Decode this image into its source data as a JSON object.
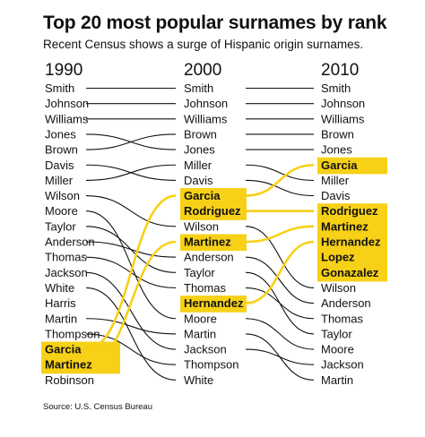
{
  "title": "Top 20 most popular surnames by rank",
  "subtitle": "Recent Census shows a surge of Hispanic origin surnames.",
  "source": "Source: U.S. Census Bureau",
  "colors": {
    "highlight": "#f7d117",
    "line": "#111111",
    "text": "#111111"
  },
  "chart_data": {
    "type": "bump",
    "years": [
      "1990",
      "2000",
      "2010"
    ],
    "rankings": {
      "1990": [
        "Smith",
        "Johnson",
        "Williams",
        "Jones",
        "Brown",
        "Davis",
        "Miller",
        "Wilson",
        "Moore",
        "Taylor",
        "Anderson",
        "Thomas",
        "Jackson",
        "White",
        "Harris",
        "Martin",
        "Thompson",
        "Garcia",
        "Martinez",
        "Robinson"
      ],
      "2000": [
        "Smith",
        "Johnson",
        "Williams",
        "Brown",
        "Jones",
        "Miller",
        "Davis",
        "Garcia",
        "Rodriguez",
        "Wilson",
        "Martinez",
        "Anderson",
        "Taylor",
        "Thomas",
        "Hernandez",
        "Moore",
        "Martin",
        "Jackson",
        "Thompson",
        "White"
      ],
      "2010": [
        "Smith",
        "Johnson",
        "Williams",
        "Brown",
        "Jones",
        "Garcia",
        "Miller",
        "Davis",
        "Rodriguez",
        "Martinez",
        "Hernandez",
        "Lopez",
        "Gonazalez",
        "Wilson",
        "Anderson",
        "Thomas",
        "Taylor",
        "Moore",
        "Jackson",
        "Martin"
      ]
    },
    "highlighted": [
      "Garcia",
      "Martinez",
      "Rodriguez",
      "Hernandez",
      "Lopez",
      "Gonazalez"
    ]
  }
}
